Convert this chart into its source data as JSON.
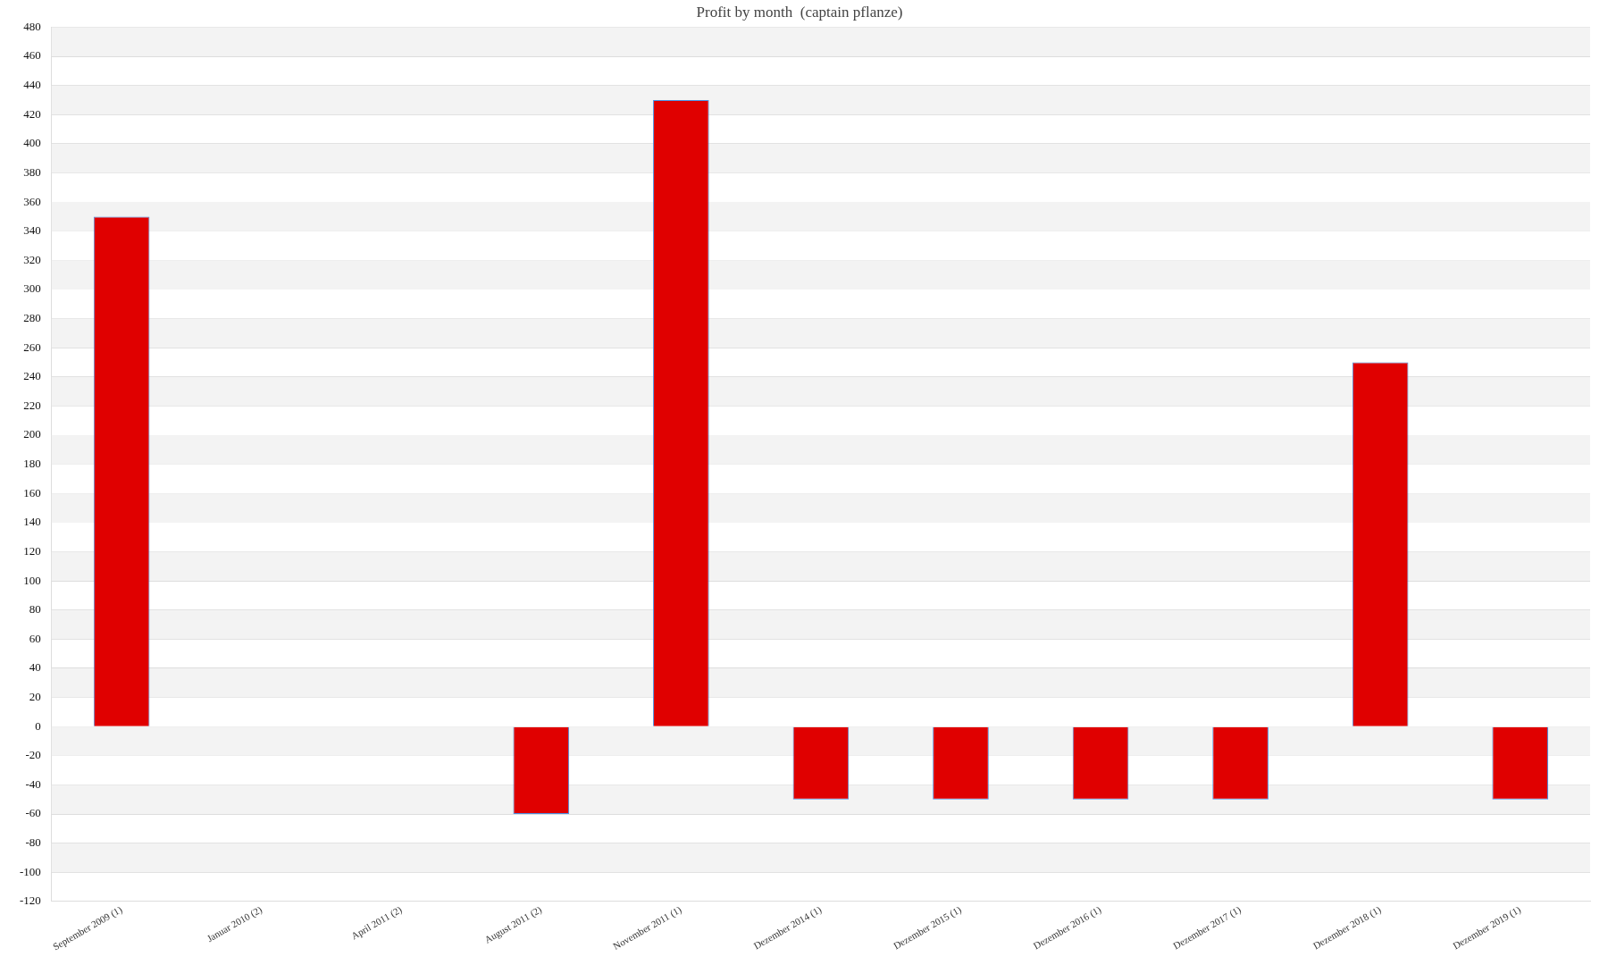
{
  "chart_data": {
    "type": "bar",
    "title": "Profit by month  (captain pflanze)",
    "categories": [
      "September 2009 (1)",
      "Januar 2010 (2)",
      "April 2011 (2)",
      "August 2011 (2)",
      "November 2011 (1)",
      "Dezember 2014 (1)",
      "Dezember 2015 (1)",
      "Dezember 2016 (1)",
      "Dezember 2017 (1)",
      "Dezember 2018 (1)",
      "Dezember 2019 (1)"
    ],
    "values": [
      350,
      0,
      0,
      -60,
      430,
      -50,
      -50,
      -50,
      -50,
      250,
      -50
    ],
    "color": "#e00000",
    "ylim": [
      -120,
      480
    ],
    "yticks": [
      -120,
      -100,
      -80,
      -60,
      -40,
      -20,
      0,
      20,
      40,
      60,
      80,
      100,
      120,
      140,
      160,
      180,
      200,
      220,
      240,
      260,
      280,
      300,
      320,
      340,
      360,
      380,
      400,
      420,
      440,
      460,
      480
    ],
    "grid": "y",
    "legend": false
  }
}
